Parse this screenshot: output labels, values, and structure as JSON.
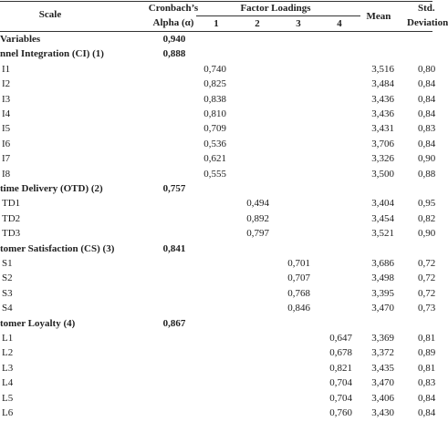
{
  "header": {
    "scale": "Scale",
    "alpha": [
      "Cronbach’s",
      "Alpha (α)"
    ],
    "factor_loadings": "Factor Loadings",
    "factors": [
      "1",
      "2",
      "3",
      "4"
    ],
    "mean": "Mean",
    "sd": [
      "Std.",
      "Deviation"
    ]
  },
  "rows": [
    {
      "label": "Variables",
      "alpha": "0,940",
      "group": true
    },
    {
      "label": "nnel Integration (CI) (1)",
      "alpha": "0,888",
      "group": true
    },
    {
      "label": "I1",
      "f1": "0,740",
      "mean": "3,516",
      "sd": "0,80"
    },
    {
      "label": "I2",
      "f1": "0,825",
      "mean": "3,484",
      "sd": "0,84"
    },
    {
      "label": "I3",
      "f1": "0,838",
      "mean": "3,436",
      "sd": "0,84"
    },
    {
      "label": "I4",
      "f1": "0,810",
      "mean": "3,436",
      "sd": "0,84"
    },
    {
      "label": "I5",
      "f1": "0,709",
      "mean": "3,431",
      "sd": "0,83"
    },
    {
      "label": "I6",
      "f1": "0,536",
      "mean": "3,706",
      "sd": "0,84"
    },
    {
      "label": "I7",
      "f1": "0,621",
      "mean": "3,326",
      "sd": "0,90"
    },
    {
      "label": "I8",
      "f1": "0,555",
      "mean": "3,500",
      "sd": "0,88"
    },
    {
      "label": "time Delivery (OTD) (2)",
      "alpha": "0,757",
      "group": true
    },
    {
      "label": "TD1",
      "f2": "0,494",
      "mean": "3,404",
      "sd": "0,95"
    },
    {
      "label": "TD2",
      "f2": "0,892",
      "mean": "3,454",
      "sd": "0,82"
    },
    {
      "label": "TD3",
      "f2": "0,797",
      "mean": "3,521",
      "sd": "0,90"
    },
    {
      "label": "tomer Satisfaction (CS) (3)",
      "alpha": "0,841",
      "group": true
    },
    {
      "label": "S1",
      "f3": "0,701",
      "mean": "3,686",
      "sd": "0,72"
    },
    {
      "label": "S2",
      "f3": "0,707",
      "mean": "3,498",
      "sd": "0,72"
    },
    {
      "label": "S3",
      "f3": "0,768",
      "mean": "3,395",
      "sd": "0,72"
    },
    {
      "label": "S4",
      "f3": "0,846",
      "mean": "3,470",
      "sd": "0,73"
    },
    {
      "label": "tomer Loyalty (4)",
      "alpha": "0,867",
      "group": true
    },
    {
      "label": "L1",
      "f4": "0,647",
      "mean": "3,369",
      "sd": "0,81"
    },
    {
      "label": "L2",
      "f4": "0,678",
      "mean": "3,372",
      "sd": "0,89"
    },
    {
      "label": "L3",
      "f4": "0,821",
      "mean": "3,435",
      "sd": "0,81"
    },
    {
      "label": "L4",
      "f4": "0,704",
      "mean": "3,470",
      "sd": "0,83"
    },
    {
      "label": "L5",
      "f4": "0,704",
      "mean": "3,406",
      "sd": "0,84"
    },
    {
      "label": "L6",
      "f4": "0,760",
      "mean": "3,430",
      "sd": "0,84"
    }
  ]
}
